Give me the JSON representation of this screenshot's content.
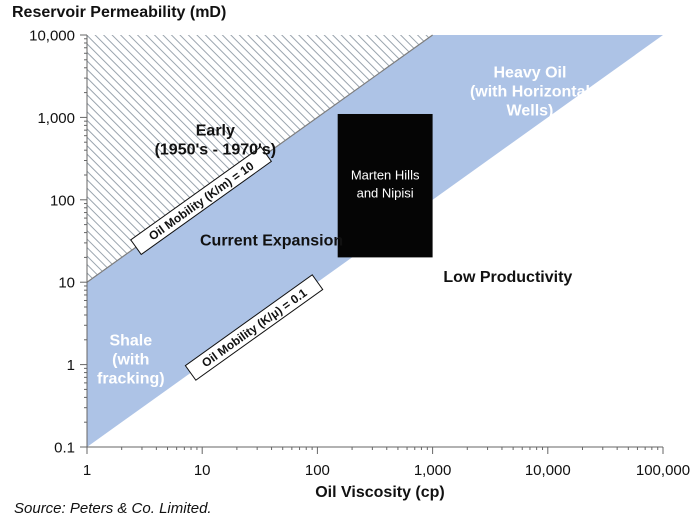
{
  "chart_data": {
    "type": "area",
    "title": "Reservoir Permeability (mD)",
    "xlabel": "Oil Viscosity (cp)",
    "ylabel": "Reservoir Permeability (mD)",
    "xscale": "log",
    "yscale": "log",
    "xlim": [
      1,
      100000
    ],
    "ylim": [
      0.1,
      10000
    ],
    "x_ticks": [
      1,
      10,
      100,
      1000,
      10000,
      100000
    ],
    "x_tick_labels": [
      "1",
      "10",
      "100",
      "1,000",
      "10,000",
      "100,000"
    ],
    "y_ticks": [
      0.1,
      1,
      10,
      100,
      1000,
      10000
    ],
    "y_tick_labels": [
      "0.1",
      "1",
      "10",
      "100",
      "1,000",
      "10,000"
    ],
    "grid": false,
    "lines": [
      {
        "label": "Oil Mobility (K/m) = 10",
        "x": [
          1,
          1000
        ],
        "y": [
          10,
          10000
        ]
      },
      {
        "label": "Oil Mobility (K/μ) = 0.1",
        "x": [
          1,
          100000
        ],
        "y": [
          0.1,
          10000
        ]
      }
    ],
    "regions": [
      {
        "label": "Early\n(1950's - 1970's)",
        "fill": "hatched",
        "x": [
          1,
          1000
        ],
        "y_lower": [
          10,
          10000
        ]
      },
      {
        "label": "Current Expansion",
        "fill": "#adc3e6"
      },
      {
        "label": "Low Productivity",
        "fill": "#ffffff"
      }
    ],
    "box": {
      "label": "Marten Hills\nand  Nipisi",
      "x": [
        150,
        1000
      ],
      "y": [
        20,
        1100
      ],
      "fill": "#050505"
    },
    "annotations": [
      {
        "text": "Heavy Oil\n(with Horizontal\nWells)",
        "x": 7000,
        "y": 1800,
        "color": "#ffffff"
      },
      {
        "text": "Shale\n(with\nfracking)",
        "x": 2.4,
        "y": 1,
        "color": "#ffffff"
      },
      {
        "text": "Low Productivity",
        "x": 4500,
        "y": 10,
        "color": "#111111"
      },
      {
        "text": "Current Expansion",
        "x": 40,
        "y": 28,
        "color": "#111111"
      }
    ],
    "colors": {
      "band": "#adc3e6",
      "hatch": "#9aa4ae",
      "box": "#050505"
    }
  },
  "source": "Source: Peters & Co. Limited."
}
